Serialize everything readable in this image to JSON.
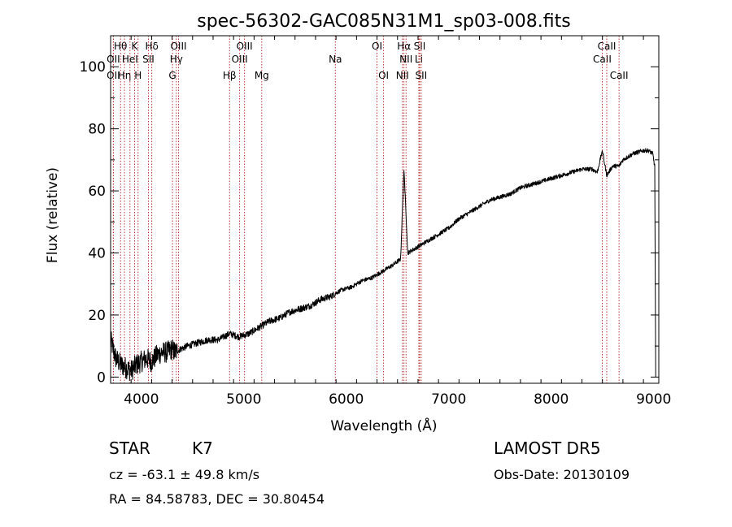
{
  "chart_data": {
    "type": "line",
    "title": "spec-56302-GAC085N31M1_sp03-008.fits",
    "xlabel": "Wavelength (Å)",
    "ylabel": "Flux (relative)",
    "xlim": [
      3700,
      9050
    ],
    "ylim": [
      -2,
      110
    ],
    "xticks": [
      4000,
      5000,
      6000,
      7000,
      8000,
      9000
    ],
    "yticks": [
      0,
      20,
      40,
      60,
      80,
      100
    ],
    "grid": false,
    "colors": {
      "spectrum": "#000000",
      "lines": "#b22222",
      "axes": "#000000"
    },
    "series": [
      {
        "x": [
          3700,
          3750,
          3800,
          3850,
          3900,
          3950,
          4000,
          4050,
          4100,
          4150,
          4200,
          4250,
          4300,
          4330,
          4380,
          4450,
          4550,
          4650,
          4750,
          4861,
          4950,
          5050,
          5150,
          5250,
          5350,
          5450,
          5550,
          5650,
          5750,
          5850,
          5895,
          5950,
          6050,
          6150,
          6250,
          6350,
          6450,
          6530,
          6563,
          6600,
          6650,
          6700,
          6800,
          6900,
          7000,
          7100,
          7200,
          7300,
          7400,
          7500,
          7600,
          7700,
          7800,
          7900,
          8000,
          8100,
          8200,
          8300,
          8400,
          8450,
          8498,
          8542,
          8600,
          8662,
          8700,
          8800,
          8900,
          8950,
          8990,
          9010,
          9020
        ],
        "y": [
          12,
          6,
          4,
          3,
          2,
          4,
          5,
          6,
          5,
          7,
          8,
          8,
          9,
          8,
          9,
          10,
          11,
          12,
          12,
          14,
          13,
          14,
          16,
          18,
          19,
          21,
          22,
          23,
          25,
          26,
          27,
          28,
          29,
          31,
          32,
          34,
          36,
          38,
          67,
          40,
          41,
          42,
          44,
          46,
          48,
          51,
          53,
          55,
          57,
          58,
          59,
          61,
          62,
          63,
          64,
          65,
          66,
          67,
          67,
          66,
          73,
          65,
          68,
          68,
          70,
          72,
          73,
          73,
          72,
          68,
          0
        ]
      }
    ],
    "line_markers": [
      {
        "wave": 3727,
        "name": "OII",
        "row": 3
      },
      {
        "wave": 3727,
        "name": "OII",
        "row": 2
      },
      {
        "wave": 3797,
        "name": "Hθ",
        "row": 1
      },
      {
        "wave": 3835,
        "name": "Hη",
        "row": 3
      },
      {
        "wave": 3889,
        "name": "HeI",
        "row": 2
      },
      {
        "wave": 3934,
        "name": "K",
        "row": 1
      },
      {
        "wave": 3968,
        "name": "H",
        "row": 3
      },
      {
        "wave": 4069,
        "name": "SII",
        "row": 2
      },
      {
        "wave": 4102,
        "name": "Hδ",
        "row": 1
      },
      {
        "wave": 4304,
        "name": "G",
        "row": 3
      },
      {
        "wave": 4341,
        "name": "Hγ",
        "row": 2
      },
      {
        "wave": 4363,
        "name": "OIII",
        "row": 1
      },
      {
        "wave": 4861,
        "name": "Hβ",
        "row": 3
      },
      {
        "wave": 4959,
        "name": "OIII",
        "row": 2
      },
      {
        "wave": 5007,
        "name": "OIII",
        "row": 1
      },
      {
        "wave": 5175,
        "name": "Mg",
        "row": 3
      },
      {
        "wave": 5893,
        "name": "Na",
        "row": 2
      },
      {
        "wave": 6300,
        "name": "OI",
        "row": 1
      },
      {
        "wave": 6364,
        "name": "OI",
        "row": 3
      },
      {
        "wave": 6548,
        "name": "NII",
        "row": 3
      },
      {
        "wave": 6563,
        "name": "Hα",
        "row": 1
      },
      {
        "wave": 6583,
        "name": "NII",
        "row": 2
      },
      {
        "wave": 6708,
        "name": "Li",
        "row": 2
      },
      {
        "wave": 6716,
        "name": "SII",
        "row": 1
      },
      {
        "wave": 6731,
        "name": "SII",
        "row": 3
      },
      {
        "wave": 8498,
        "name": "CaII",
        "row": 2
      },
      {
        "wave": 8542,
        "name": "CaII",
        "row": 1
      },
      {
        "wave": 8662,
        "name": "CaII",
        "row": 3
      }
    ]
  },
  "info": {
    "object_class": "STAR",
    "subclass": "K7",
    "survey": "LAMOST DR5",
    "cz_text": "cz = -63.1 ± 49.8 km/s",
    "obs_date": "Obs-Date: 20130109",
    "coords_text": "RA =  84.58783, DEC =  30.80454"
  }
}
